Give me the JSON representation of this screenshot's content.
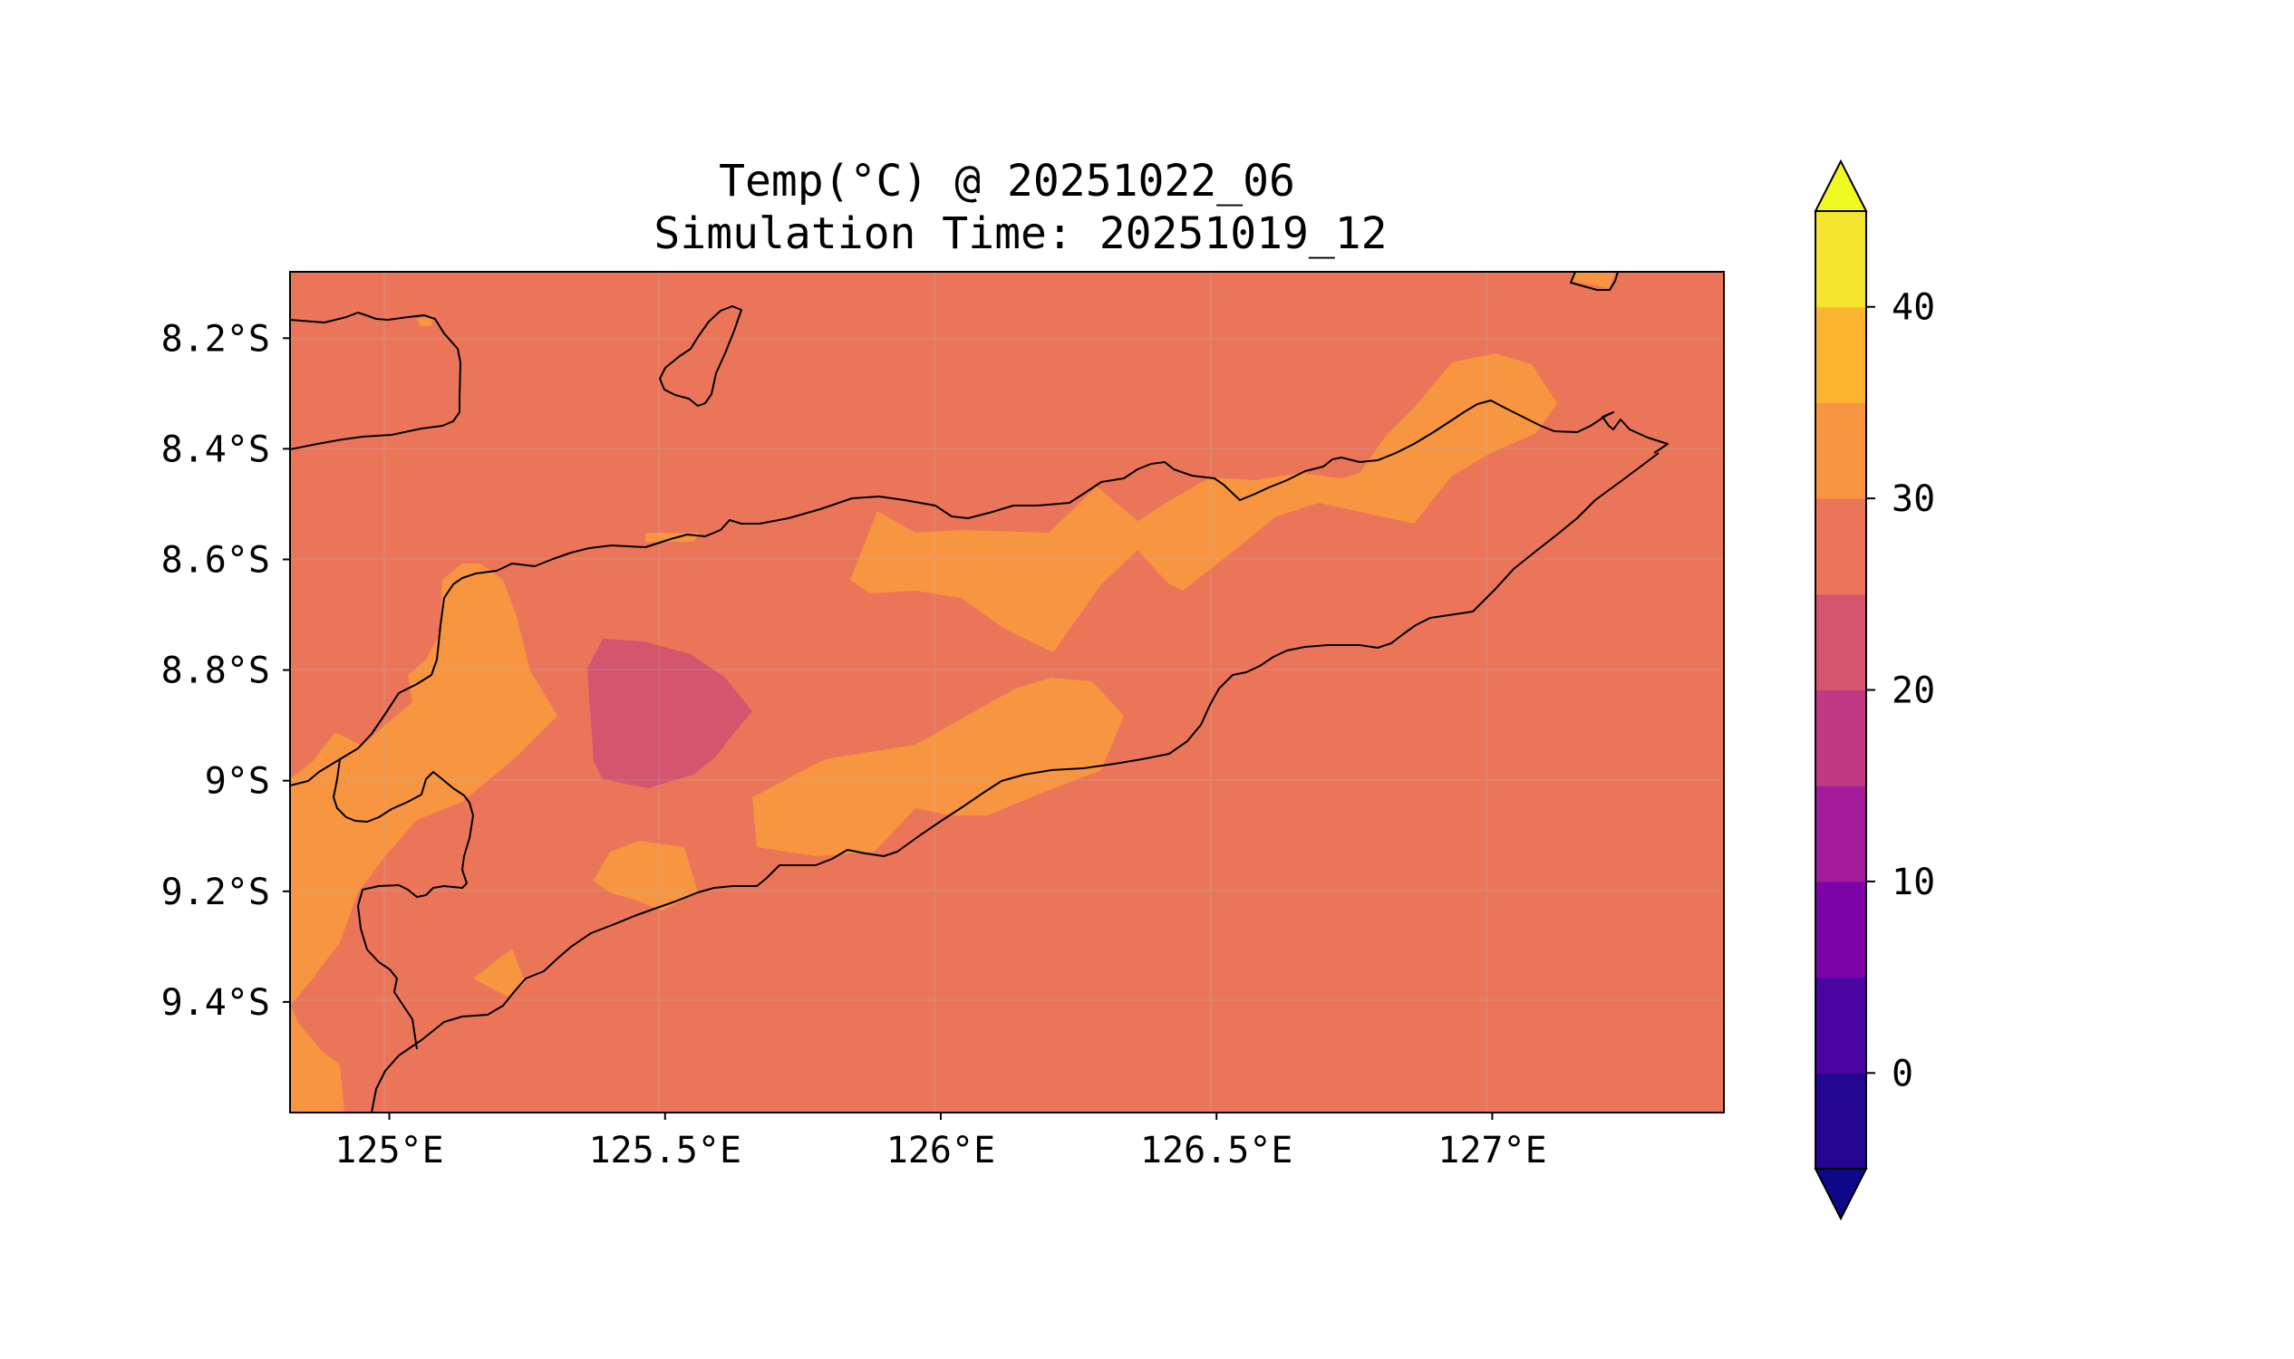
{
  "title": {
    "line1": "Temp(°C) @ 20251022_06",
    "line2": "Simulation Time: 20251019_12"
  },
  "map": {
    "lon_range": [
      124.82,
      127.42
    ],
    "lat_range": [
      -9.6,
      -8.08
    ],
    "lon_ticks": [
      {
        "value": 125.0,
        "label": "125°E"
      },
      {
        "value": 125.5,
        "label": "125.5°E"
      },
      {
        "value": 126.0,
        "label": "126°E"
      },
      {
        "value": 126.5,
        "label": "126.5°E"
      },
      {
        "value": 127.0,
        "label": "127°E"
      }
    ],
    "lat_ticks": [
      {
        "value": -8.2,
        "label": "8.2°S"
      },
      {
        "value": -8.4,
        "label": "8.4°S"
      },
      {
        "value": -8.6,
        "label": "8.6°S"
      },
      {
        "value": -8.8,
        "label": "8.8°S"
      },
      {
        "value": -9.0,
        "label": "9°S"
      },
      {
        "value": -9.2,
        "label": "9.2°S"
      },
      {
        "value": -9.4,
        "label": "9.4°S"
      }
    ],
    "background_level_color": "#eb7559",
    "grid": true
  },
  "colorbar": {
    "levels": [
      -5,
      0,
      5,
      10,
      15,
      20,
      25,
      30,
      35,
      40,
      45
    ],
    "colors": [
      "#220690",
      "#4b03a1",
      "#7d03a8",
      "#a11b9b",
      "#c03a83",
      "#d5546e",
      "#eb7559",
      "#f89540",
      "#fdb431",
      "#f3e52e"
    ],
    "under_color": "#0d0887",
    "over_color": "#f0f921",
    "ticks": [
      {
        "value": 0,
        "label": "0"
      },
      {
        "value": 10,
        "label": "10"
      },
      {
        "value": 20,
        "label": "20"
      },
      {
        "value": 30,
        "label": "30"
      },
      {
        "value": 40,
        "label": "40"
      }
    ],
    "extend": "both"
  }
}
